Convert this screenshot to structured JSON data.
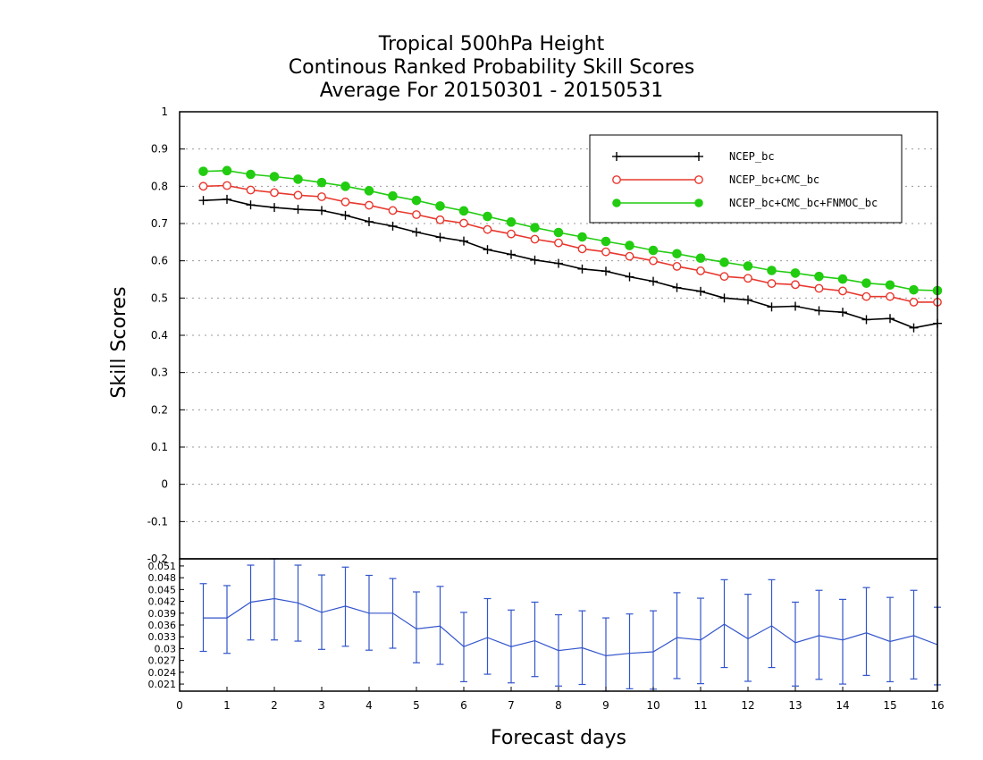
{
  "title": [
    "Tropical 500hPa Height",
    "Continous Ranked Probability Skill Scores",
    "Average For 20150301 - 20150531"
  ],
  "chart_data": [
    {
      "type": "line",
      "ylabel": "Skill Scores",
      "ylim": [
        -0.2,
        1
      ],
      "yticks": [
        "1",
        "0.9",
        "0.8",
        "0.7",
        "0.6",
        "0.5",
        "0.4",
        "0.3",
        "0.2",
        "0.1",
        "0",
        "-0.1",
        "-0.2"
      ],
      "ytick_values": [
        1,
        0.9,
        0.8,
        0.7,
        0.6,
        0.5,
        0.4,
        0.3,
        0.2,
        0.1,
        0,
        -0.1,
        -0.2
      ],
      "grid": true,
      "legend_position": "top-right",
      "x": [
        0.5,
        1.0,
        1.5,
        2.0,
        2.5,
        3.0,
        3.5,
        4.0,
        4.5,
        5.0,
        5.5,
        6.0,
        6.5,
        7.0,
        7.5,
        8.0,
        8.5,
        9.0,
        9.5,
        10.0,
        10.5,
        11.0,
        11.5,
        12.0,
        12.5,
        13.0,
        13.5,
        14.0,
        14.5,
        15.0,
        15.5,
        16.0
      ],
      "series": [
        {
          "name": "NCEP_bc",
          "color": "#000000",
          "marker": "plus",
          "values": [
            0.762,
            0.765,
            0.75,
            0.743,
            0.738,
            0.735,
            0.722,
            0.705,
            0.693,
            0.677,
            0.663,
            0.653,
            0.63,
            0.617,
            0.602,
            0.593,
            0.578,
            0.572,
            0.557,
            0.545,
            0.528,
            0.518,
            0.5,
            0.495,
            0.476,
            0.478,
            0.466,
            0.462,
            0.442,
            0.445,
            0.42,
            0.432
          ]
        },
        {
          "name": "NCEP_bc+CMC_bc",
          "color": "#e8382e",
          "marker": "open-circle",
          "values": [
            0.8,
            0.802,
            0.79,
            0.783,
            0.776,
            0.772,
            0.758,
            0.749,
            0.735,
            0.724,
            0.71,
            0.701,
            0.684,
            0.672,
            0.658,
            0.648,
            0.632,
            0.624,
            0.612,
            0.6,
            0.585,
            0.573,
            0.558,
            0.553,
            0.539,
            0.536,
            0.526,
            0.519,
            0.504,
            0.504,
            0.489,
            0.489
          ]
        },
        {
          "name": "NCEP_bc+CMC_bc+FNMOC_bc",
          "color": "#22cc11",
          "marker": "filled-circle",
          "values": [
            0.84,
            0.842,
            0.832,
            0.826,
            0.819,
            0.81,
            0.8,
            0.788,
            0.774,
            0.762,
            0.747,
            0.734,
            0.719,
            0.704,
            0.689,
            0.676,
            0.664,
            0.652,
            0.641,
            0.628,
            0.619,
            0.607,
            0.596,
            0.586,
            0.574,
            0.567,
            0.558,
            0.551,
            0.54,
            0.535,
            0.522,
            0.52
          ]
        }
      ]
    },
    {
      "type": "line",
      "xlabel": "Forecast days",
      "xlim": [
        0,
        16
      ],
      "xticks": [
        "0",
        "1",
        "2",
        "3",
        "4",
        "5",
        "6",
        "7",
        "8",
        "9",
        "10",
        "11",
        "12",
        "13",
        "14",
        "15",
        "16"
      ],
      "ylim": [
        0.0192,
        0.0528
      ],
      "yticks": [
        "0.051",
        "0.048",
        "0.045",
        "0.042",
        "0.039",
        "0.036",
        "0.033",
        "0.03",
        "0.027",
        "0.024",
        "0.021"
      ],
      "ytick_values": [
        0.051,
        0.048,
        0.045,
        0.042,
        0.039,
        0.036,
        0.033,
        0.03,
        0.027,
        0.024,
        0.021
      ],
      "series": [
        {
          "color": "#3355cc",
          "x": [
            0.5,
            1.0,
            1.5,
            2.0,
            2.5,
            3.0,
            3.5,
            4.0,
            4.5,
            5.0,
            5.5,
            6.0,
            6.5,
            7.0,
            7.5,
            8.0,
            8.5,
            9.0,
            9.5,
            10.0,
            10.5,
            11.0,
            11.5,
            12.0,
            12.5,
            13.0,
            13.5,
            14.0,
            14.5,
            15.0,
            15.5,
            16.0
          ],
          "values": [
            0.0378,
            0.0378,
            0.0418,
            0.0427,
            0.0416,
            0.0392,
            0.0408,
            0.039,
            0.039,
            0.035,
            0.0357,
            0.0305,
            0.0328,
            0.0305,
            0.032,
            0.0295,
            0.0302,
            0.0282,
            0.0288,
            0.0292,
            0.0328,
            0.0322,
            0.0362,
            0.0325,
            0.0358,
            0.0315,
            0.0333,
            0.0322,
            0.034,
            0.0318,
            0.0333,
            0.031
          ],
          "error_low": [
            0.0293,
            0.0288,
            0.0322,
            0.0322,
            0.0319,
            0.0298,
            0.0306,
            0.0296,
            0.0301,
            0.0264,
            0.026,
            0.0216,
            0.0235,
            0.0213,
            0.0229,
            0.0205,
            0.0209,
            0.0192,
            0.0198,
            0.0197,
            0.0224,
            0.0211,
            0.0252,
            0.0217,
            0.0252,
            0.0205,
            0.0222,
            0.021,
            0.0232,
            0.0216,
            0.0223,
            0.0208
          ],
          "error_high": [
            0.0465,
            0.046,
            0.0512,
            0.0528,
            0.0512,
            0.0487,
            0.0507,
            0.0486,
            0.0478,
            0.0444,
            0.0458,
            0.0392,
            0.0427,
            0.0398,
            0.0418,
            0.0386,
            0.0396,
            0.0378,
            0.0388,
            0.0396,
            0.0442,
            0.0428,
            0.0475,
            0.0438,
            0.0475,
            0.0418,
            0.0448,
            0.0425,
            0.0455,
            0.043,
            0.0448,
            0.0405
          ]
        }
      ]
    }
  ]
}
